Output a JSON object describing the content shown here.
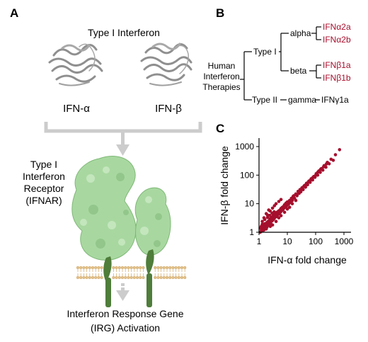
{
  "panel_a": {
    "letter": "A",
    "title": "Type I Interferon",
    "ifn_alpha_label": "IFN-α",
    "ifn_beta_label": "IFN-β",
    "receptor_label": [
      "Type I",
      "Interferon",
      "Receptor",
      "(IFNAR)"
    ],
    "outcome_label": [
      "Interferon Response Gene",
      "(IRG) Activation"
    ]
  },
  "panel_b": {
    "letter": "B",
    "root_label": [
      "Human",
      "Interferon",
      "Therapies"
    ],
    "type1_label": "Type I",
    "type2_label": "Type II",
    "alpha_label": "alpha",
    "beta_label": "beta",
    "gamma_label": "gamma",
    "alpha_leaves": [
      "IFNα2a",
      "IFNα2b"
    ],
    "beta_leaves": [
      "IFNβ1a",
      "IFNβ1b"
    ],
    "gamma_leaf": "IFNγ1a"
  },
  "panel_c": {
    "letter": "C"
  },
  "colors": {
    "accent_red": "#a50f2d",
    "protein_gray": "#8f8f8f",
    "receptor_green": "#a8d8a0",
    "membrane_tan": "#e2c089",
    "stalk_green": "#4f7d3a",
    "bracket_gray": "#cccccc"
  },
  "chart_data": {
    "type": "scatter",
    "xlabel": "IFN-α fold change",
    "ylabel": "IFN-β fold change",
    "xscale": "log",
    "yscale": "log",
    "xlim": [
      1,
      1000
    ],
    "ylim": [
      1,
      1000
    ],
    "xticks": [
      "1",
      "10",
      "100",
      "1000"
    ],
    "yticks": [
      "1",
      "10",
      "100",
      "1000"
    ],
    "grid": false,
    "series": [
      {
        "points": [
          [
            1.1,
            1.0
          ],
          [
            1.2,
            1.3
          ],
          [
            1.3,
            1.1
          ],
          [
            1.4,
            1.5
          ],
          [
            1.5,
            1.2
          ],
          [
            1.6,
            1.8
          ],
          [
            1.7,
            1.4
          ],
          [
            1.8,
            1.6
          ],
          [
            1.9,
            2.2
          ],
          [
            2.0,
            1.7
          ],
          [
            1.2,
            1.6
          ],
          [
            1.3,
            1.9
          ],
          [
            1.5,
            1.4
          ],
          [
            1.6,
            2.0
          ],
          [
            1.8,
            1.3
          ],
          [
            2.1,
            2.4
          ],
          [
            2.2,
            1.9
          ],
          [
            2.3,
            2.6
          ],
          [
            2.4,
            2.1
          ],
          [
            2.5,
            3.0
          ],
          [
            2.6,
            2.3
          ],
          [
            2.7,
            2.8
          ],
          [
            2.8,
            3.4
          ],
          [
            2.9,
            2.5
          ],
          [
            3.0,
            3.1
          ],
          [
            3.1,
            2.7
          ],
          [
            3.2,
            3.8
          ],
          [
            3.4,
            3.0
          ],
          [
            3.5,
            4.2
          ],
          [
            3.6,
            3.3
          ],
          [
            3.8,
            3.6
          ],
          [
            4.0,
            4.5
          ],
          [
            4.1,
            3.5
          ],
          [
            4.3,
            5.0
          ],
          [
            4.5,
            4.0
          ],
          [
            4.7,
            4.8
          ],
          [
            5.0,
            5.6
          ],
          [
            5.2,
            4.4
          ],
          [
            5.5,
            6.0
          ],
          [
            5.8,
            5.1
          ],
          [
            6.0,
            6.8
          ],
          [
            6.3,
            5.7
          ],
          [
            6.6,
            7.4
          ],
          [
            7.0,
            6.2
          ],
          [
            7.3,
            8.0
          ],
          [
            7.7,
            7.1
          ],
          [
            8.0,
            9.2
          ],
          [
            8.5,
            7.6
          ],
          [
            9.0,
            10.5
          ],
          [
            9.5,
            8.4
          ],
          [
            10,
            11.5
          ],
          [
            11,
            9.6
          ],
          [
            12,
            13.0
          ],
          [
            13,
            11.0
          ],
          [
            14,
            15.5
          ],
          [
            15,
            13.0
          ],
          [
            16,
            18.0
          ],
          [
            18,
            15.5
          ],
          [
            20,
            22.0
          ],
          [
            22,
            19.0
          ],
          [
            24,
            27.0
          ],
          [
            26,
            23.0
          ],
          [
            28,
            31.0
          ],
          [
            30,
            26.0
          ],
          [
            33,
            36.0
          ],
          [
            36,
            31.0
          ],
          [
            40,
            43.0
          ],
          [
            44,
            38.0
          ],
          [
            48,
            52.0
          ],
          [
            52,
            46.0
          ],
          [
            58,
            62.0
          ],
          [
            64,
            56.0
          ],
          [
            70,
            75.0
          ],
          [
            78,
            68.0
          ],
          [
            86,
            90.0
          ],
          [
            95,
            84.0
          ],
          [
            105,
            112.0
          ],
          [
            118,
            100.0
          ],
          [
            130,
            140.0
          ],
          [
            145,
            125.0
          ],
          [
            160,
            170.0
          ],
          [
            180,
            150.0
          ],
          [
            200,
            215.0
          ],
          [
            230,
            190.0
          ],
          [
            260,
            280.0
          ],
          [
            300,
            250.0
          ],
          [
            350,
            360.0
          ],
          [
            420,
            330.0
          ],
          [
            500,
            520.0
          ],
          [
            700,
            780.0
          ],
          [
            2.0,
            4.0
          ],
          [
            2.5,
            5.5
          ],
          [
            3.0,
            7.0
          ],
          [
            3.5,
            8.5
          ],
          [
            4.0,
            10.0
          ],
          [
            5.0,
            12.0
          ],
          [
            6.0,
            14.0
          ],
          [
            1.5,
            3.2
          ],
          [
            1.8,
            4.5
          ],
          [
            2.2,
            6.0
          ],
          [
            3.0,
            1.8
          ],
          [
            4.0,
            2.4
          ],
          [
            5.0,
            3.2
          ],
          [
            6.0,
            3.8
          ],
          [
            8.0,
            5.0
          ],
          [
            10,
            6.5
          ],
          [
            12,
            7.5
          ],
          [
            15,
            10.0
          ],
          [
            20,
            13.0
          ],
          [
            2.5,
            1.6
          ],
          [
            1.1,
            1.4
          ],
          [
            1.2,
            1.1
          ],
          [
            1.4,
            1.2
          ],
          [
            1.5,
            1.7
          ],
          [
            1.7,
            1.9
          ],
          [
            1.9,
            1.5
          ],
          [
            2.1,
            1.8
          ],
          [
            2.3,
            2.2
          ],
          [
            2.6,
            2.0
          ],
          [
            2.8,
            2.6
          ],
          [
            3.3,
            3.5
          ],
          [
            3.7,
            3.9
          ],
          [
            4.2,
            4.1
          ],
          [
            4.8,
            5.3
          ],
          [
            5.3,
            5.0
          ],
          [
            6.5,
            6.9
          ],
          [
            7.5,
            7.8
          ],
          [
            9.2,
            9.0
          ],
          [
            11.5,
            12.0
          ],
          [
            14.5,
            14.0
          ],
          [
            17,
            19.0
          ],
          [
            21,
            20.5
          ],
          [
            25,
            25.0
          ],
          [
            32,
            33.0
          ],
          [
            38,
            40.0
          ],
          [
            46,
            48.0
          ],
          [
            55,
            57.0
          ],
          [
            66,
            68.0
          ],
          [
            80,
            82.0
          ],
          [
            100,
            98.0
          ],
          [
            120,
            128.0
          ],
          [
            150,
            160.0
          ],
          [
            190,
            195.0
          ],
          [
            240,
            245.0
          ],
          [
            1.3,
            2.4
          ],
          [
            1.6,
            2.8
          ],
          [
            2.0,
            3.3
          ],
          [
            2.4,
            3.9
          ],
          [
            2.9,
            4.6
          ],
          [
            3.4,
            5.2
          ]
        ]
      }
    ]
  }
}
